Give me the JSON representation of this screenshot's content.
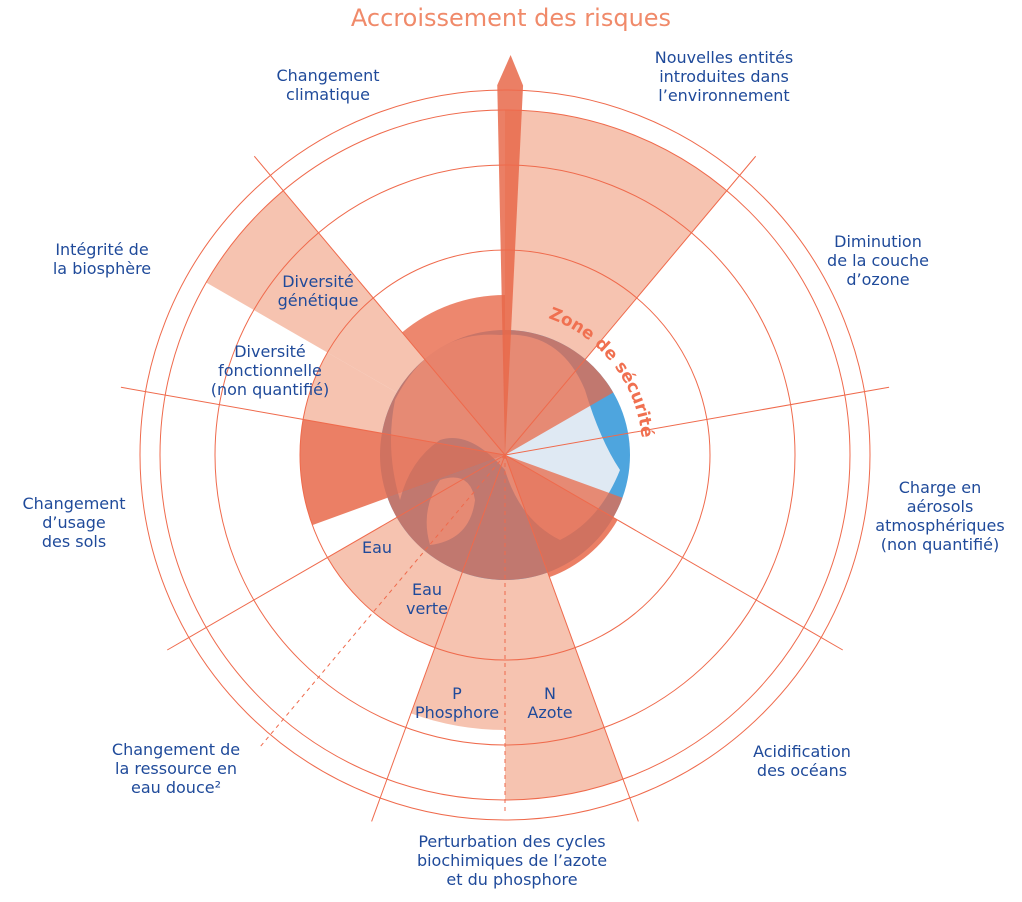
{
  "title": "Accroissement des risques",
  "safe_zone": "Zone de sécurité",
  "boundaries": [
    {
      "lines": [
        "Nouvelles entités",
        "introduites dans",
        "l’environnement"
      ]
    },
    {
      "lines": [
        "Diminution",
        "de la couche",
        "d’ozone"
      ]
    },
    {
      "lines": [
        "Charge en",
        "aérosols",
        "atmosphériques",
        "(non quantifié)"
      ]
    },
    {
      "lines": [
        "Acidification",
        "des océans"
      ]
    },
    {
      "lines": [
        "Perturbation des cycles",
        "biochimiques de l’azote",
        "et du phosphore"
      ]
    },
    {
      "lines": [
        "Changement de",
        "la ressource en",
        "eau douce²"
      ]
    },
    {
      "lines": [
        "Changement",
        "d’usage",
        "des sols"
      ]
    },
    {
      "lines": [
        "Intégrité de",
        "la biosphère"
      ]
    },
    {
      "lines": [
        "Changement",
        "climatique"
      ]
    }
  ],
  "sublabels": [
    {
      "lines": [
        "Diversité",
        "génétique"
      ]
    },
    {
      "lines": [
        "Diversité",
        "fonctionnelle",
        "(non quantifié)"
      ]
    },
    {
      "lines": [
        "Eau"
      ]
    },
    {
      "lines": [
        "Eau",
        "verte"
      ]
    },
    {
      "lines": [
        "P",
        "Phosphore"
      ]
    },
    {
      "lines": [
        "N",
        "Azote"
      ]
    }
  ]
}
